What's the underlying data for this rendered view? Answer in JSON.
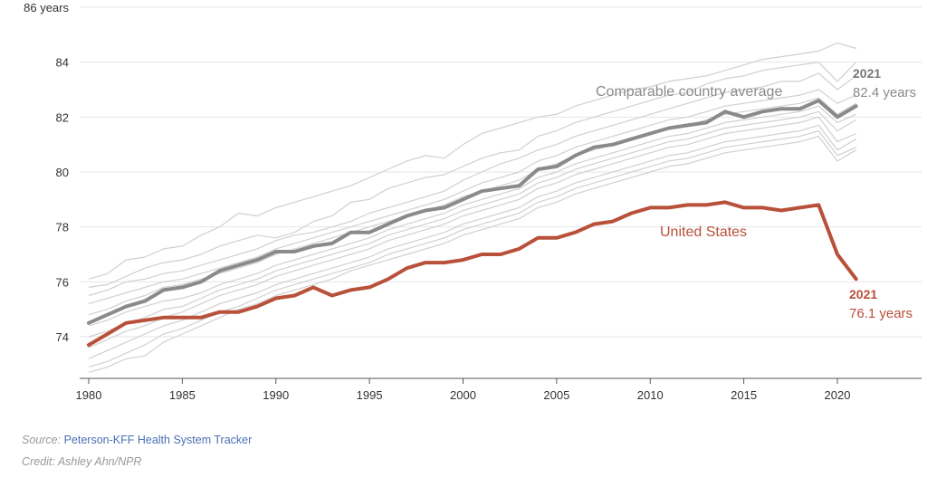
{
  "chart_data": {
    "type": "line",
    "x": [
      1980,
      1981,
      1982,
      1983,
      1984,
      1985,
      1986,
      1987,
      1988,
      1989,
      1990,
      1991,
      1992,
      1993,
      1994,
      1995,
      1996,
      1997,
      1998,
      1999,
      2000,
      2001,
      2002,
      2003,
      2004,
      2005,
      2006,
      2007,
      2008,
      2009,
      2010,
      2011,
      2012,
      2013,
      2014,
      2015,
      2016,
      2017,
      2018,
      2019,
      2020,
      2021
    ],
    "ylim": [
      72.5,
      86
    ],
    "y_ticks": [
      74,
      76,
      78,
      80,
      82,
      84,
      86
    ],
    "y_tick_labels": [
      "74",
      "76",
      "78",
      "80",
      "82",
      "84",
      "86 years"
    ],
    "x_ticks": [
      1980,
      1985,
      1990,
      1995,
      2000,
      2005,
      2010,
      2015,
      2020
    ],
    "grid": true,
    "series": [
      {
        "name": "Comparable country average",
        "color": "#8a8a8a",
        "values": [
          74.5,
          74.8,
          75.1,
          75.3,
          75.7,
          75.8,
          76.0,
          76.4,
          76.6,
          76.8,
          77.1,
          77.1,
          77.3,
          77.4,
          77.8,
          77.8,
          78.1,
          78.4,
          78.6,
          78.7,
          79.0,
          79.3,
          79.4,
          79.5,
          80.1,
          80.2,
          80.6,
          80.9,
          81.0,
          81.2,
          81.4,
          81.6,
          81.7,
          81.8,
          82.2,
          82.0,
          82.2,
          82.3,
          82.3,
          82.6,
          82.0,
          82.4
        ]
      },
      {
        "name": "United States",
        "color": "#b8503a",
        "values": [
          73.7,
          74.1,
          74.5,
          74.6,
          74.7,
          74.7,
          74.7,
          74.9,
          74.9,
          75.1,
          75.4,
          75.5,
          75.8,
          75.5,
          75.7,
          75.8,
          76.1,
          76.5,
          76.7,
          76.7,
          76.8,
          77.0,
          77.0,
          77.2,
          77.6,
          77.6,
          77.8,
          78.1,
          78.2,
          78.5,
          78.7,
          78.7,
          78.8,
          78.8,
          78.9,
          78.7,
          78.7,
          78.6,
          78.7,
          78.8,
          77.0,
          76.1
        ]
      }
    ],
    "background_series_color": "#d0d0d0",
    "background_series": [
      [
        76.1,
        76.3,
        76.8,
        76.9,
        77.2,
        77.3,
        77.7,
        78.0,
        78.5,
        78.4,
        78.7,
        78.9,
        79.1,
        79.3,
        79.5,
        79.8,
        80.1,
        80.4,
        80.6,
        80.5,
        81.0,
        81.4,
        81.6,
        81.8,
        82.0,
        82.1,
        82.4,
        82.6,
        82.8,
        83.0,
        83.1,
        83.3,
        83.4,
        83.5,
        83.7,
        83.9,
        84.1,
        84.2,
        84.3,
        84.4,
        84.7,
        84.5
      ],
      [
        75.8,
        75.9,
        76.2,
        76.5,
        76.7,
        76.8,
        77.0,
        77.3,
        77.5,
        77.7,
        77.6,
        77.8,
        78.2,
        78.4,
        78.9,
        79.0,
        79.4,
        79.6,
        79.8,
        79.9,
        80.2,
        80.5,
        80.7,
        80.8,
        81.3,
        81.5,
        81.8,
        82.0,
        82.2,
        82.4,
        82.6,
        82.8,
        82.9,
        83.2,
        83.4,
        83.5,
        83.7,
        83.8,
        83.9,
        84.0,
        83.3,
        84.0
      ],
      [
        75.5,
        75.7,
        76.0,
        76.1,
        76.3,
        76.4,
        76.6,
        76.8,
        77.0,
        77.2,
        77.5,
        77.7,
        77.8,
        78.0,
        78.2,
        78.5,
        78.7,
        78.9,
        79.1,
        79.3,
        79.7,
        80.0,
        80.3,
        80.5,
        80.8,
        81.0,
        81.3,
        81.5,
        81.7,
        81.9,
        82.1,
        82.3,
        82.5,
        82.7,
        82.9,
        83.0,
        83.1,
        83.3,
        83.3,
        83.6,
        83.0,
        83.5
      ],
      [
        75.2,
        75.4,
        75.6,
        75.8,
        76.0,
        76.1,
        76.3,
        76.5,
        76.7,
        76.9,
        77.2,
        77.4,
        77.6,
        77.8,
        78.0,
        78.2,
        78.4,
        78.6,
        78.8,
        79.0,
        79.3,
        79.6,
        79.8,
        80.0,
        80.4,
        80.6,
        80.9,
        81.1,
        81.3,
        81.5,
        81.7,
        81.9,
        82.0,
        82.2,
        82.4,
        82.5,
        82.6,
        82.7,
        82.8,
        83.0,
        82.5,
        82.8
      ],
      [
        74.8,
        75.0,
        75.3,
        75.5,
        75.8,
        75.9,
        76.1,
        76.3,
        76.5,
        76.7,
        77.0,
        77.2,
        77.4,
        77.6,
        77.8,
        78.0,
        78.2,
        78.4,
        78.6,
        78.8,
        79.1,
        79.3,
        79.5,
        79.7,
        80.1,
        80.3,
        80.6,
        80.8,
        81.0,
        81.2,
        81.4,
        81.6,
        81.7,
        81.9,
        82.1,
        82.2,
        82.3,
        82.4,
        82.5,
        82.7,
        82.1,
        82.5
      ],
      [
        74.4,
        74.6,
        74.9,
        75.1,
        75.3,
        75.4,
        75.6,
        75.9,
        76.1,
        76.3,
        76.6,
        76.8,
        77.0,
        77.2,
        77.4,
        77.6,
        77.9,
        78.1,
        78.3,
        78.5,
        78.8,
        79.0,
        79.2,
        79.4,
        79.8,
        80.0,
        80.3,
        80.5,
        80.7,
        80.9,
        81.1,
        81.3,
        81.4,
        81.6,
        81.8,
        81.9,
        82.0,
        82.1,
        82.2,
        82.4,
        81.8,
        82.1
      ],
      [
        74.0,
        74.2,
        74.5,
        74.7,
        75.0,
        75.1,
        75.4,
        75.7,
        75.9,
        76.1,
        76.4,
        76.6,
        76.8,
        77.0,
        77.2,
        77.4,
        77.7,
        77.9,
        78.1,
        78.3,
        78.6,
        78.8,
        79.0,
        79.2,
        79.6,
        79.8,
        80.1,
        80.3,
        80.5,
        80.7,
        80.9,
        81.1,
        81.2,
        81.4,
        81.6,
        81.7,
        81.8,
        81.9,
        82.0,
        82.2,
        81.5,
        81.9
      ],
      [
        73.6,
        73.9,
        74.2,
        74.4,
        74.7,
        74.9,
        75.2,
        75.5,
        75.7,
        75.9,
        76.2,
        76.4,
        76.6,
        76.8,
        77.0,
        77.2,
        77.5,
        77.7,
        77.9,
        78.1,
        78.4,
        78.6,
        78.8,
        79.0,
        79.4,
        79.6,
        79.9,
        80.1,
        80.3,
        80.5,
        80.7,
        80.9,
        81.0,
        81.2,
        81.4,
        81.5,
        81.6,
        81.7,
        81.8,
        82.0,
        81.1,
        81.4
      ],
      [
        73.2,
        73.5,
        73.8,
        74.1,
        74.4,
        74.6,
        74.9,
        75.2,
        75.4,
        75.6,
        75.9,
        76.1,
        76.3,
        76.5,
        76.7,
        76.9,
        77.2,
        77.4,
        77.6,
        77.8,
        78.1,
        78.3,
        78.5,
        78.7,
        79.1,
        79.3,
        79.6,
        79.8,
        80.0,
        80.2,
        80.4,
        80.6,
        80.7,
        80.9,
        81.1,
        81.2,
        81.3,
        81.4,
        81.5,
        81.7,
        80.8,
        81.2
      ],
      [
        72.9,
        73.1,
        73.4,
        73.7,
        74.1,
        74.3,
        74.6,
        74.9,
        75.1,
        75.4,
        75.7,
        75.9,
        76.1,
        76.3,
        76.5,
        76.7,
        77.0,
        77.2,
        77.4,
        77.6,
        77.9,
        78.1,
        78.3,
        78.5,
        78.9,
        79.1,
        79.4,
        79.6,
        79.8,
        80.0,
        80.2,
        80.4,
        80.5,
        80.7,
        80.9,
        81.0,
        81.1,
        81.2,
        81.3,
        81.5,
        80.6,
        80.9
      ],
      [
        72.7,
        72.9,
        73.2,
        73.3,
        73.8,
        74.1,
        74.4,
        74.7,
        75.0,
        75.2,
        75.5,
        75.7,
        75.9,
        76.1,
        76.4,
        76.6,
        76.8,
        77.0,
        77.2,
        77.4,
        77.7,
        77.9,
        78.1,
        78.3,
        78.7,
        78.9,
        79.2,
        79.4,
        79.6,
        79.8,
        80.0,
        80.2,
        80.3,
        80.5,
        80.7,
        80.8,
        80.9,
        81.0,
        81.1,
        81.3,
        80.4,
        80.8
      ]
    ]
  },
  "annotations": {
    "avg_label": "Comparable country average",
    "avg_year": "2021",
    "avg_value": "82.4 years",
    "us_label": "United States",
    "us_year": "2021",
    "us_value": "76.1 years"
  },
  "footer": {
    "source_prefix": "Source:",
    "source_link": "Peterson-KFF Health System Tracker",
    "credit": "Credit: Ashley Ahn/NPR"
  }
}
